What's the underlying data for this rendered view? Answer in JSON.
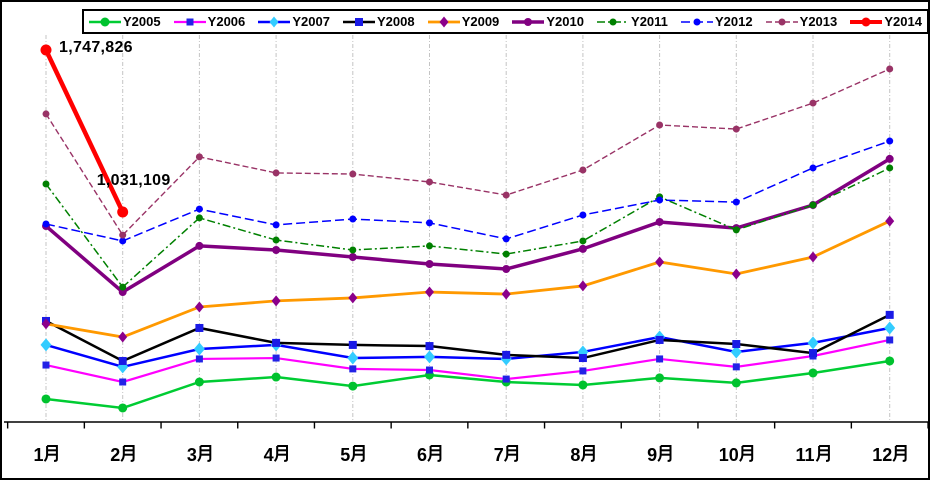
{
  "chart_data": {
    "type": "line",
    "title": "",
    "xlabel": "",
    "ylabel": "",
    "x_categories": [
      "1月",
      "2月",
      "3月",
      "4月",
      "5月",
      "6月",
      "7月",
      "8月",
      "9月",
      "10月",
      "11月",
      "12月"
    ],
    "y_axis_visible": false,
    "y_range_estimate": [
      100000,
      1810000
    ],
    "grid": "vertical-dashed",
    "legend": {
      "position": "top",
      "border": true
    },
    "series": [
      {
        "name": "Y2005",
        "color": "#00CC33",
        "line_style": "solid",
        "line_width": 2.5,
        "dash": null,
        "marker": "circle",
        "marker_color": "#00C22E",
        "marker_size": 9,
        "values": [
          204000,
          164000,
          279000,
          301000,
          261000,
          310000,
          279000,
          266000,
          297000,
          275000,
          319000,
          372000
        ]
      },
      {
        "name": "Y2006",
        "color": "#FF00FF",
        "line_style": "solid",
        "line_width": 2.2,
        "dash": null,
        "marker": "square",
        "marker_color": "#2222E6",
        "marker_size": 7,
        "values": [
          354000,
          279000,
          381000,
          385000,
          337000,
          332000,
          292000,
          328000,
          381000,
          346000,
          394000,
          465000
        ]
      },
      {
        "name": "Y2007",
        "color": "#0000FF",
        "line_style": "solid",
        "line_width": 2.5,
        "dash": null,
        "marker": "diamond",
        "marker_color": "#33CCFF",
        "marker_size": 11,
        "values": [
          443000,
          346000,
          425000,
          443000,
          385000,
          390000,
          381000,
          412000,
          478000,
          412000,
          452000,
          518000
        ]
      },
      {
        "name": "Y2008",
        "color": "#000000",
        "line_style": "solid",
        "line_width": 2.5,
        "dash": null,
        "marker": "square",
        "marker_color": "#1A1AE6",
        "marker_size": 8,
        "values": [
          549000,
          372000,
          518000,
          452000,
          443000,
          438000,
          399000,
          385000,
          465000,
          447000,
          407000,
          576000
        ]
      },
      {
        "name": "Y2009",
        "color": "#FF9900",
        "line_style": "solid",
        "line_width": 2.8,
        "dash": null,
        "marker": "diamond",
        "marker_color": "#8B008B",
        "marker_size": 9,
        "values": [
          536000,
          478000,
          611000,
          638000,
          651000,
          677000,
          668000,
          704000,
          810000,
          757000,
          832000,
          991000
        ]
      },
      {
        "name": "Y2010",
        "color": "#800080",
        "line_style": "solid",
        "line_width": 3.5,
        "dash": null,
        "marker": "circle",
        "marker_color": "#800080",
        "marker_size": 8,
        "values": [
          969000,
          677000,
          881000,
          863000,
          832000,
          801000,
          779000,
          868000,
          987000,
          960000,
          1062000,
          1266000
        ]
      },
      {
        "name": "Y2011",
        "color": "#008000",
        "line_style": "dashed",
        "line_width": 1.5,
        "dash": "8 3 2 3",
        "marker": "circle",
        "marker_color": "#008000",
        "marker_size": 7,
        "values": [
          1155000,
          699000,
          1005000,
          907000,
          863000,
          881000,
          845000,
          903000,
          1098000,
          952000,
          1062000,
          1226000
        ]
      },
      {
        "name": "Y2012",
        "color": "#0000FF",
        "line_style": "dashed",
        "line_width": 1.5,
        "dash": "9 4",
        "marker": "circle",
        "marker_color": "#0000FF",
        "marker_size": 7,
        "values": [
          978000,
          903000,
          1044000,
          974000,
          1000000,
          983000,
          912000,
          1018000,
          1084000,
          1075000,
          1226000,
          1345000
        ]
      },
      {
        "name": "Y2013",
        "color": "#993366",
        "line_style": "dashed",
        "line_width": 1.4,
        "dash": "6 3",
        "marker": "circle",
        "marker_color": "#993366",
        "marker_size": 7,
        "values": [
          1465000,
          929000,
          1275000,
          1204000,
          1199000,
          1164000,
          1106000,
          1217000,
          1416000,
          1398000,
          1513000,
          1664000
        ]
      },
      {
        "name": "Y2014",
        "color": "#FF0000",
        "line_style": "solid",
        "line_width": 4.5,
        "dash": null,
        "marker": "circle",
        "marker_color": "#FF0000",
        "marker_size": 11,
        "values": [
          1747826,
          1031109,
          null,
          null,
          null,
          null,
          null,
          null,
          null,
          null,
          null,
          null
        ]
      }
    ],
    "annotations": [
      {
        "text": "1,747,826",
        "series": "Y2014",
        "month_index": 0
      },
      {
        "text": "1,031,109",
        "series": "Y2014",
        "month_index": 1
      }
    ]
  }
}
